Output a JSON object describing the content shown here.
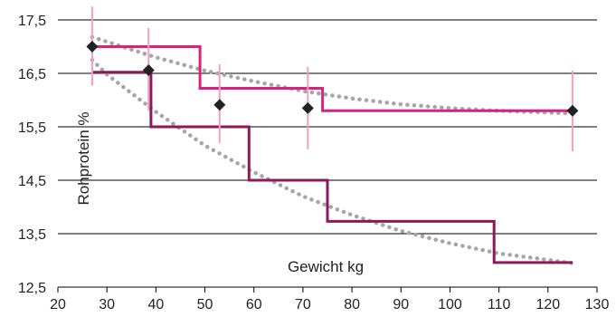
{
  "chart_data": {
    "type": "line",
    "xlabel": "Gewicht kg",
    "ylabel": "Rohprotein %",
    "xlim": [
      20,
      130
    ],
    "ylim": [
      12.5,
      17.5
    ],
    "x_ticks": [
      "20",
      "30",
      "40",
      "50",
      "60",
      "70",
      "80",
      "90",
      "100",
      "110",
      "120",
      "130"
    ],
    "y_ticks": [
      "12,5",
      "13,5",
      "14,5",
      "15,5",
      "16,5",
      "17,5"
    ],
    "grid": "horizontal",
    "series": [
      {
        "kind": "step",
        "color": "#d6247e",
        "points": [
          [
            27,
            17.0
          ],
          [
            49,
            17.0
          ],
          [
            49,
            16.22
          ],
          [
            74,
            16.22
          ],
          [
            74,
            15.8
          ],
          [
            125,
            15.8
          ]
        ]
      },
      {
        "kind": "step",
        "color": "#8a1a5c",
        "points": [
          [
            27,
            16.52
          ],
          [
            39,
            16.52
          ],
          [
            39,
            15.5
          ],
          [
            59,
            15.5
          ],
          [
            59,
            14.5
          ],
          [
            75,
            14.5
          ],
          [
            75,
            13.73
          ],
          [
            109,
            13.73
          ],
          [
            109,
            12.96
          ],
          [
            125,
            12.96
          ]
        ]
      },
      {
        "kind": "trend",
        "color": "#a6a6a6",
        "points": [
          [
            27,
            17.18
          ],
          [
            40,
            16.8
          ],
          [
            50,
            16.55
          ],
          [
            60,
            16.35
          ],
          [
            70,
            16.17
          ],
          [
            80,
            16.03
          ],
          [
            90,
            15.92
          ],
          [
            100,
            15.85
          ],
          [
            110,
            15.8
          ],
          [
            125,
            15.75
          ]
        ]
      },
      {
        "kind": "trend",
        "color": "#a6a6a6",
        "points": [
          [
            27,
            16.75
          ],
          [
            30,
            16.48
          ],
          [
            40,
            15.78
          ],
          [
            50,
            15.15
          ],
          [
            60,
            14.65
          ],
          [
            70,
            14.2
          ],
          [
            80,
            13.85
          ],
          [
            90,
            13.55
          ],
          [
            100,
            13.32
          ],
          [
            110,
            13.13
          ],
          [
            125,
            12.95
          ]
        ]
      },
      {
        "kind": "points",
        "color": "#222222",
        "error_color": "#f2a0bf",
        "points": [
          {
            "x": 27,
            "y": 17.0,
            "lo": 16.27,
            "hi": 17.75
          },
          {
            "x": 38.5,
            "y": 16.56,
            "lo": 15.8,
            "hi": 17.35
          },
          {
            "x": 53,
            "y": 15.91,
            "lo": 15.2,
            "hi": 16.67
          },
          {
            "x": 71,
            "y": 15.85,
            "lo": 15.08,
            "hi": 16.62
          },
          {
            "x": 125,
            "y": 15.8,
            "lo": 15.04,
            "hi": 16.55
          }
        ]
      }
    ]
  }
}
